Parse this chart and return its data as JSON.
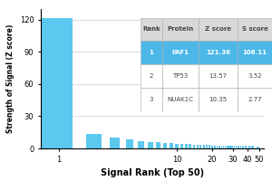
{
  "x_ranks": [
    1,
    2,
    3,
    4,
    5,
    6,
    7,
    8,
    9,
    10,
    11,
    12,
    13,
    14,
    15,
    16,
    17,
    18,
    19,
    20,
    21,
    22,
    23,
    24,
    25,
    26,
    27,
    28,
    29,
    30,
    31,
    32,
    33,
    34,
    35,
    36,
    37,
    38,
    39,
    40,
    41,
    42,
    43,
    44,
    45,
    46,
    47,
    48,
    49,
    50
  ],
  "y_values": [
    121.36,
    13.57,
    10.35,
    8.2,
    7.1,
    6.3,
    5.7,
    5.2,
    4.8,
    4.5,
    4.2,
    4.0,
    3.8,
    3.6,
    3.5,
    3.3,
    3.2,
    3.1,
    3.0,
    2.9,
    2.85,
    2.8,
    2.75,
    2.7,
    2.65,
    2.6,
    2.57,
    2.54,
    2.51,
    2.48,
    2.45,
    2.43,
    2.41,
    2.39,
    2.37,
    2.35,
    2.33,
    2.31,
    2.29,
    2.27,
    2.25,
    2.23,
    2.21,
    2.19,
    2.17,
    2.15,
    2.13,
    2.11,
    2.09,
    2.07
  ],
  "xlabel": "Signal Rank (Top 50)",
  "ylabel": "Strength of Signal (Z score)",
  "xlim_log": [
    1,
    50
  ],
  "ylim": [
    0,
    130
  ],
  "yticks": [
    0,
    30,
    60,
    90,
    120
  ],
  "bar_color": "#5bc8f0",
  "table_data": [
    [
      "Rank",
      "Protein",
      "Z score",
      "S score"
    ],
    [
      "1",
      "FAF1",
      "121.36",
      "106.11"
    ],
    [
      "2",
      "TP53",
      "13.57",
      "3.52"
    ],
    [
      "3",
      "NUAK1C",
      "10.35",
      "2.77"
    ]
  ],
  "table_highlight_row": 1,
  "table_highlight_color": "#4db8e8",
  "table_header_bg": "#d8d8d8",
  "table_header_text": "#444444",
  "highlight_text_color": "#ffffff",
  "normal_text_color": "#444444",
  "background_color": "#ffffff",
  "grid_color": "#cccccc"
}
